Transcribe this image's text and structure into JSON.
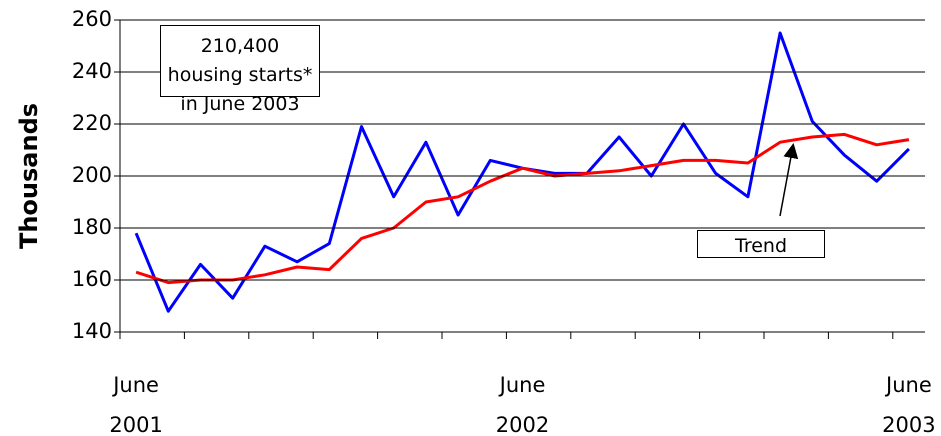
{
  "chart_data": {
    "type": "line",
    "ylabel": "Thousands",
    "annotation": "210,400 housing starts* in June 2003",
    "categories": [
      "June 2001",
      null,
      null,
      null,
      null,
      null,
      null,
      null,
      null,
      null,
      null,
      null,
      "June 2002",
      null,
      null,
      null,
      null,
      null,
      null,
      null,
      null,
      null,
      null,
      null,
      "June 2003"
    ],
    "series": [
      {
        "color": "#0000ff",
        "values": [
          178,
          148,
          166,
          153,
          173,
          167,
          174,
          219,
          192,
          213,
          185,
          206,
          203,
          201,
          201,
          215,
          200,
          220,
          201,
          192,
          255,
          221,
          208,
          198,
          210.4
        ]
      },
      {
        "name": "Trend",
        "color": "#ff0000",
        "values": [
          163,
          159,
          160,
          160,
          162,
          165,
          164,
          176,
          180,
          190,
          192,
          198,
          203,
          200,
          201,
          202,
          204,
          206,
          206,
          205,
          213,
          215,
          216,
          212,
          214
        ]
      }
    ],
    "ylim": [
      140,
      260
    ],
    "yticks": [
      140,
      160,
      180,
      200,
      220,
      240,
      260
    ],
    "grid": true
  }
}
